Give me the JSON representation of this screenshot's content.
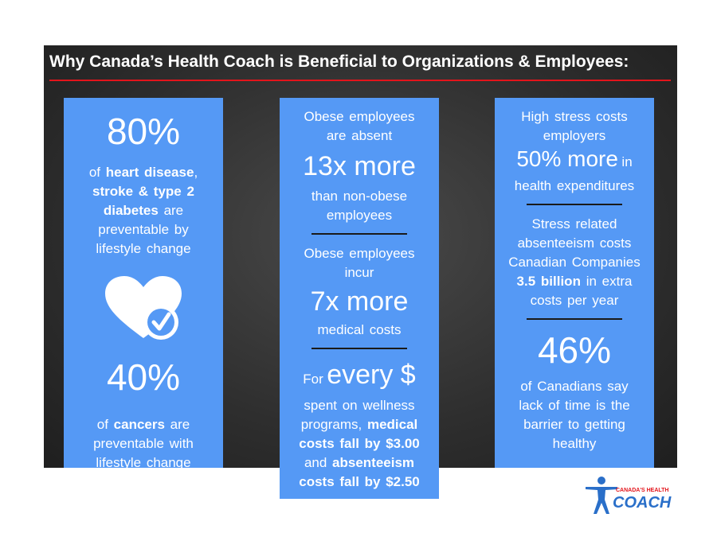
{
  "title": "Why Canada’s Health Coach is Beneficial to Organizations & Employees:",
  "columns": [
    [
      "80%",
      "of",
      "heart disease",
      ",",
      "stroke & type 2 diabetes",
      "are preventable by lifestyle change",
      "40%",
      "of",
      "cancers",
      "are preventable with lifestyle change"
    ],
    [
      "Obese employees are absent",
      "13x more",
      "than non-obese employees",
      "Obese employees incur",
      "7x more",
      "medical costs",
      "For",
      "every $",
      "spent on wellness programs,",
      "medical costs fall by $3.00",
      "and",
      "absenteeism costs fall by $2.50"
    ],
    [
      "High stress costs employers",
      "50% more",
      "in",
      "health expenditures",
      "Stress related absenteeism costs Canadian Companies",
      "3.5 billion",
      "in extra costs per year",
      "46%",
      "of Canadians say lack of time is the barrier to getting healthy"
    ]
  ],
  "logo": {
    "top": "CANADA'S HEALTH",
    "main": "COACH"
  }
}
